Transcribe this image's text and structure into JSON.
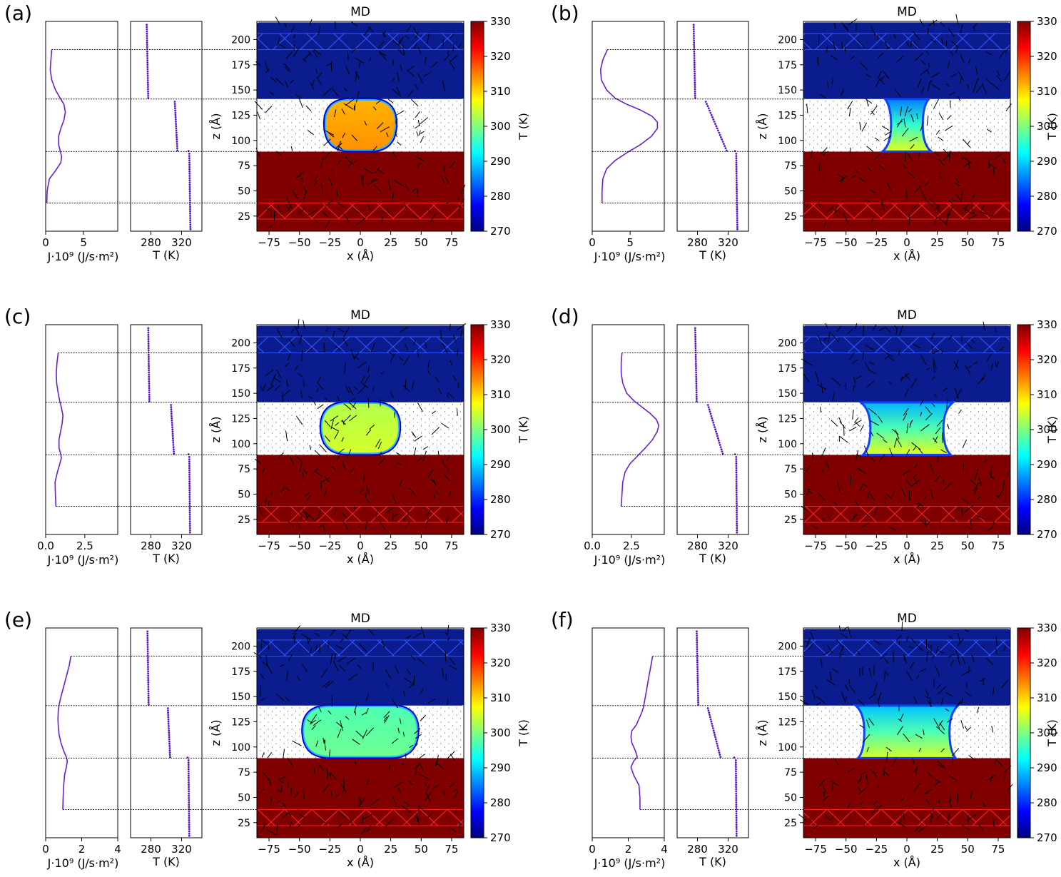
{
  "colors": {
    "profile_line": "#6a1fd0",
    "temperature_points": "#5a12c8",
    "hot_wall": "#800000",
    "cold_wall": "#0a1c8e",
    "hot_grid": "#ff2020",
    "cold_grid": "#3355ff",
    "dashed": "#000000",
    "colormap": [
      "#00007f",
      "#0000ff",
      "#007fff",
      "#00ffff",
      "#7fff7f",
      "#ffff00",
      "#ff7f00",
      "#ff0000",
      "#7f0000"
    ]
  },
  "common": {
    "md_title": "MD",
    "xlabel": "x (Å)",
    "zlabel": "z (Å)",
    "flux_label": "J·10⁹ (J/s·m²)",
    "temp_label": "T (K)",
    "colorbar_label": "T (K)",
    "z_ticks": [
      25,
      50,
      75,
      100,
      125,
      150,
      175,
      200
    ],
    "x_ticks": [
      -75,
      -50,
      -25,
      0,
      25,
      50,
      75
    ],
    "colorbar_ticks": [
      270,
      280,
      290,
      300,
      310,
      320,
      330
    ],
    "temp_ticks": [
      280,
      320
    ]
  },
  "chart_data": [
    {
      "panel": "(a)",
      "type": "line",
      "flux_ticks": [
        "0",
        "5"
      ],
      "flux_range": [
        0,
        9.5
      ],
      "flux_profile": {
        "z": [
          38,
          50,
          62,
          70,
          78,
          84,
          90,
          96,
          104,
          112,
          120,
          128,
          136,
          142,
          150,
          160,
          170,
          180,
          190
        ],
        "value": [
          0.15,
          0.2,
          0.5,
          1.3,
          2.0,
          2.1,
          1.9,
          1.7,
          1.7,
          2.0,
          2.4,
          2.6,
          2.4,
          1.9,
          1.3,
          0.8,
          0.6,
          0.7,
          0.8
        ]
      },
      "temp_profile": {
        "bottom": [
          331.5,
          330.0
        ],
        "middle": [
          314.5,
          311.0
        ],
        "top": [
          276.5,
          274.5
        ],
        "bottom_right_edge": 329
      },
      "droplet": {
        "shape": "drop",
        "half_width": 27,
        "z_bottom": 89,
        "z_top": 141,
        "core_temperature": 313,
        "edge_temperature": 303
      }
    },
    {
      "panel": "(b)",
      "type": "line",
      "flux_ticks": [
        "0",
        "5"
      ],
      "flux_range": [
        0,
        9.5
      ],
      "flux_profile": {
        "z": [
          38,
          50,
          62,
          72,
          80,
          88,
          96,
          104,
          112,
          118,
          124,
          130,
          136,
          142,
          150,
          160,
          170,
          180,
          190
        ],
        "value": [
          1.3,
          1.3,
          1.4,
          1.9,
          3.0,
          4.6,
          6.4,
          7.8,
          8.6,
          8.6,
          7.9,
          6.4,
          4.5,
          3.0,
          1.9,
          1.2,
          1.1,
          1.4,
          2.0
        ]
      },
      "temp_profile": {
        "bottom": [
          332.0,
          330.5
        ],
        "middle": [
          318.0,
          290.0
        ],
        "top": [
          277.0,
          275.0
        ],
        "bottom_right_edge": 329
      },
      "droplet": {
        "shape": "bridge",
        "half_width_bottom": 20,
        "half_width_middle": 13,
        "half_width_top": 18,
        "z_bottom": 89,
        "z_top": 141,
        "temperature_bottom": 306,
        "temperature_top": 285
      }
    },
    {
      "panel": "(c)",
      "type": "line",
      "flux_ticks": [
        "0.0",
        "2.5"
      ],
      "flux_range": [
        0,
        4.6
      ],
      "flux_profile": {
        "z": [
          38,
          50,
          62,
          72,
          80,
          86,
          90,
          96,
          104,
          112,
          120,
          128,
          136,
          142,
          150,
          160,
          170,
          180,
          190
        ],
        "value": [
          0.65,
          0.62,
          0.6,
          0.75,
          0.9,
          1.0,
          0.95,
          0.85,
          0.85,
          0.95,
          1.05,
          1.1,
          1.0,
          0.9,
          0.8,
          0.7,
          0.68,
          0.72,
          0.8
        ]
      },
      "temp_profile": {
        "bottom": [
          331.0,
          330.0
        ],
        "middle": [
          310.0,
          306.0
        ],
        "top": [
          278.0,
          276.5
        ],
        "bottom_right_edge": 329
      },
      "droplet": {
        "shape": "drop",
        "half_width": 30,
        "z_bottom": 89,
        "z_top": 141,
        "core_temperature": 304,
        "edge_temperature": 300
      }
    },
    {
      "panel": "(d)",
      "type": "line",
      "flux_ticks": [
        "0.0",
        "2.5"
      ],
      "flux_range": [
        0,
        4.6
      ],
      "flux_profile": {
        "z": [
          38,
          50,
          62,
          72,
          80,
          88,
          96,
          104,
          112,
          118,
          124,
          130,
          136,
          142,
          150,
          160,
          170,
          180,
          190
        ],
        "value": [
          1.85,
          1.9,
          1.95,
          2.1,
          2.4,
          2.9,
          3.4,
          3.85,
          4.15,
          4.25,
          4.1,
          3.7,
          3.2,
          2.7,
          2.2,
          1.95,
          1.85,
          1.85,
          1.9
        ]
      },
      "temp_profile": {
        "bottom": [
          331.5,
          330.5
        ],
        "middle": [
          313.0,
          293.0
        ],
        "top": [
          279.0,
          277.0
        ],
        "bottom_right_edge": 329
      },
      "droplet": {
        "shape": "bridge",
        "half_width_bottom": 36,
        "half_width_middle": 30,
        "half_width_top": 38,
        "z_bottom": 89,
        "z_top": 141,
        "temperature_bottom": 306,
        "temperature_top": 288
      }
    },
    {
      "panel": "(e)",
      "type": "line",
      "flux_ticks": [
        "0",
        "2",
        "4"
      ],
      "flux_range": [
        0,
        4
      ],
      "flux_profile": {
        "z": [
          38,
          50,
          62,
          72,
          80,
          86,
          90,
          96,
          104,
          112,
          120,
          128,
          136,
          142,
          150,
          160,
          170,
          180,
          190
        ],
        "value": [
          0.95,
          0.97,
          1.0,
          1.05,
          1.15,
          1.2,
          1.15,
          1.0,
          0.85,
          0.75,
          0.7,
          0.68,
          0.7,
          0.75,
          0.85,
          1.0,
          1.15,
          1.3,
          1.4
        ]
      },
      "temp_profile": {
        "bottom": [
          330.0,
          329.0
        ],
        "middle": [
          305.0,
          302.0
        ],
        "top": [
          277.0,
          275.5
        ],
        "bottom_right_edge": 328
      },
      "droplet": {
        "shape": "drop",
        "half_width": 45,
        "z_bottom": 89,
        "z_top": 141,
        "core_temperature": 298,
        "edge_temperature": 296
      }
    },
    {
      "panel": "(f)",
      "type": "line",
      "flux_ticks": [
        "0",
        "2",
        "4"
      ],
      "flux_range": [
        0,
        4
      ],
      "flux_profile": {
        "z": [
          38,
          50,
          62,
          72,
          80,
          86,
          90,
          96,
          104,
          110,
          116,
          122,
          128,
          134,
          140,
          150,
          160,
          170,
          180,
          190
        ],
        "value": [
          2.65,
          2.65,
          2.6,
          2.3,
          2.15,
          2.3,
          2.5,
          2.4,
          2.2,
          2.15,
          2.2,
          2.45,
          2.6,
          2.75,
          2.85,
          2.95,
          3.05,
          3.15,
          3.25,
          3.35
        ]
      },
      "temp_profile": {
        "bottom": [
          331.0,
          330.0
        ],
        "middle": [
          310.0,
          293.0
        ],
        "top": [
          281.0,
          279.0
        ],
        "bottom_right_edge": 328
      },
      "droplet": {
        "shape": "bridge",
        "half_width_bottom": 40,
        "half_width_middle": 35,
        "half_width_top": 42,
        "z_bottom": 89,
        "z_top": 141,
        "temperature_bottom": 305,
        "temperature_top": 289
      }
    }
  ]
}
